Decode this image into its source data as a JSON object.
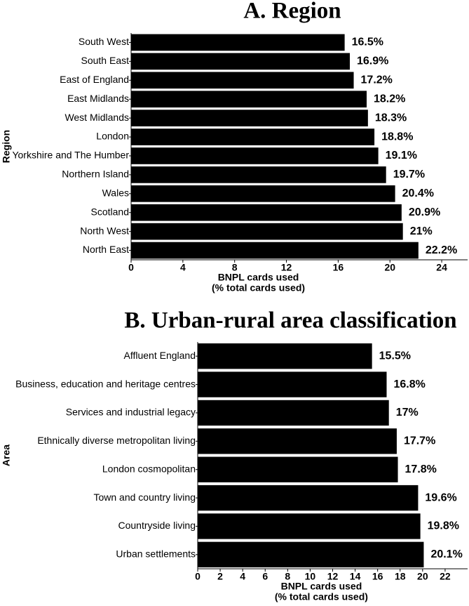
{
  "chart_data": [
    {
      "type": "hbar",
      "title": "A. Region",
      "y_label": "Region",
      "x_label": [
        "BNPL cards used",
        "(% total cards used)"
      ],
      "categories": [
        "South West",
        "South East",
        "East of England",
        "East Midlands",
        "West Midlands",
        "London",
        "Yorkshire and The Humber",
        "Northern Island",
        "Wales",
        "Scotland",
        "North West",
        "North East"
      ],
      "values": [
        16.5,
        16.9,
        17.2,
        18.2,
        18.3,
        18.8,
        19.1,
        19.7,
        20.4,
        20.9,
        21,
        22.2
      ],
      "value_labels": [
        "16.5%",
        "16.9%",
        "17.2%",
        "18.2%",
        "18.3%",
        "18.8%",
        "19.1%",
        "19.7%",
        "20.4%",
        "20.9%",
        "21%",
        "22.2%"
      ],
      "color": "#000000",
      "xlim": [
        0,
        26
      ],
      "xticks": [
        0,
        4,
        8,
        12,
        16,
        20,
        24
      ]
    },
    {
      "type": "hbar",
      "title": "B. Urban-rural area classification",
      "y_label": "Area",
      "x_label": [
        "BNPL cards used",
        "(% total cards used)"
      ],
      "categories": [
        "Affluent England",
        "Business, education and heritage centres",
        "Services and industrial legacy",
        "Ethnically diverse metropolitan  living",
        "London cosmopolitan",
        "Town and country living",
        "Countryside living",
        "Urban settlements"
      ],
      "values": [
        15.5,
        16.8,
        17,
        17.7,
        17.8,
        19.6,
        19.8,
        20.1
      ],
      "value_labels": [
        "15.5%",
        "16.8%",
        "17%",
        "17.7%",
        "17.8%",
        "19.6%",
        "19.8%",
        "20.1%"
      ],
      "color": "#000000",
      "xlim": [
        0,
        24
      ],
      "xticks": [
        0,
        2,
        4,
        6,
        8,
        10,
        12,
        14,
        16,
        18,
        20,
        22
      ]
    }
  ]
}
